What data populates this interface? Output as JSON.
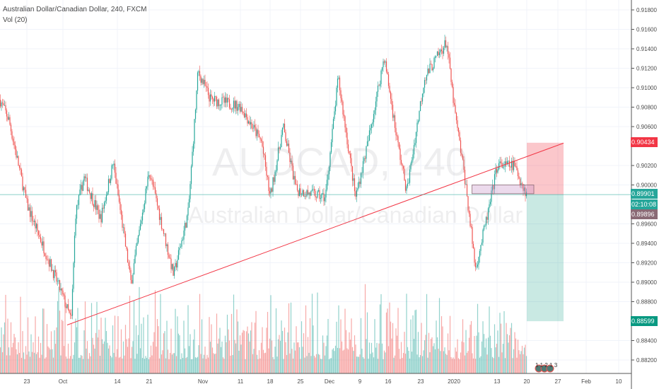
{
  "header": {
    "title": "Australian Dollar/Canadian Dollar, 240, FXCM",
    "indicator": "Vol (20)"
  },
  "watermark": {
    "symbol": "AUDCAD, 240",
    "name": "Australian Dollar/Canadian Dollar"
  },
  "price_axis": {
    "ticks": [
      "0.91800",
      "0.91600",
      "0.91400",
      "0.91200",
      "0.91000",
      "0.90800",
      "0.90600",
      "0.90200",
      "0.90000",
      "0.89600",
      "0.89400",
      "0.89200",
      "0.89000",
      "0.88800",
      "0.88400",
      "0.88200"
    ]
  },
  "time_axis": {
    "ticks": [
      "23",
      "Oct",
      "14",
      "21",
      "Nov",
      "11",
      "18",
      "25",
      "Dec",
      "9",
      "16",
      "23",
      "2020",
      "13",
      "20",
      "27",
      "Feb",
      "10"
    ]
  },
  "labels": {
    "stop": "0.90434",
    "last": "0.89901",
    "countdown": "02:10:08",
    "bid": "0.89896",
    "target": "0.88599",
    "events": "1 1 2 1 3"
  },
  "colors": {
    "up": "#26a69a",
    "down": "#ef5350",
    "stop": "#f23645",
    "target": "#089981",
    "bid": "#8a6a75",
    "trend": "#f23645"
  },
  "chart_data": {
    "type": "candlestick",
    "title": "Australian Dollar/Canadian Dollar, 240, FXCM",
    "ylim": [
      0.8815,
      0.919
    ],
    "price_path": [
      [
        "2019-09-17",
        0.9088
      ],
      [
        "2019-09-19",
        0.9067
      ],
      [
        "2019-09-23",
        0.898
      ],
      [
        "2019-10-01",
        0.8885
      ],
      [
        "2019-10-03",
        0.886
      ],
      [
        "2019-10-04",
        0.897
      ],
      [
        "2019-10-06",
        0.9008
      ],
      [
        "2019-10-10",
        0.8965
      ],
      [
        "2019-10-13",
        0.9023
      ],
      [
        "2019-10-17",
        0.8899
      ],
      [
        "2019-10-21",
        0.9015
      ],
      [
        "2019-10-26",
        0.8907
      ],
      [
        "2019-10-29",
        0.8972
      ],
      [
        "2019-10-31",
        0.9117
      ],
      [
        "2019-11-03",
        0.9088
      ],
      [
        "2019-11-11",
        0.9081
      ],
      [
        "2019-11-16",
        0.9044
      ],
      [
        "2019-11-18",
        0.8987
      ],
      [
        "2019-11-21",
        0.906
      ],
      [
        "2019-11-24",
        0.8995
      ],
      [
        "2019-12-01",
        0.8987
      ],
      [
        "2019-12-04",
        0.911
      ],
      [
        "2019-12-08",
        0.8987
      ],
      [
        "2019-12-11",
        0.9044
      ],
      [
        "2019-12-15",
        0.9132
      ],
      [
        "2019-12-18",
        0.9044
      ],
      [
        "2019-12-20",
        0.8993
      ],
      [
        "2019-12-24",
        0.911
      ],
      [
        "2019-12-30",
        0.9147
      ],
      [
        "2020-01-01",
        0.9081
      ],
      [
        "2020-01-04",
        0.9008
      ],
      [
        "2020-01-07",
        0.8914
      ],
      [
        "2020-01-11",
        0.898
      ],
      [
        "2020-01-13",
        0.902
      ],
      [
        "2020-01-17",
        0.902
      ],
      [
        "2020-01-20",
        0.899
      ]
    ],
    "trendline": [
      [
        "2019-10-02",
        0.8856
      ],
      [
        "2020-01-28",
        0.9043
      ]
    ],
    "position": {
      "start": "2020-01-20",
      "end": "2020-01-28",
      "entry": 0.89901,
      "stop": 0.90434,
      "target": 0.88599
    },
    "zone": {
      "start": "2020-01-08",
      "end": "2020-01-20",
      "top": 0.9,
      "bottom": 0.8991
    }
  }
}
